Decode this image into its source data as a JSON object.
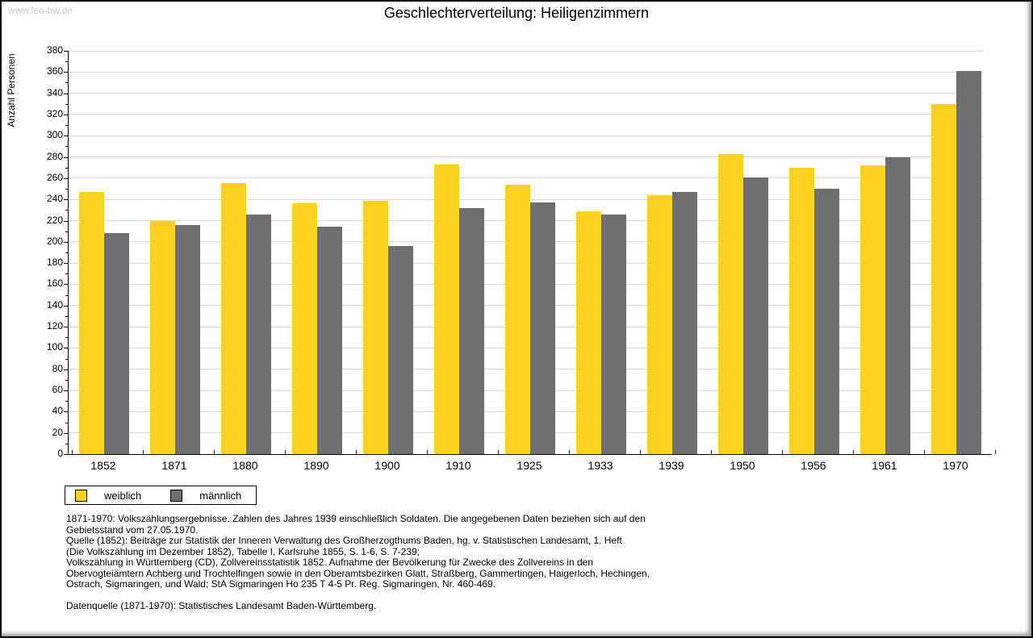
{
  "watermark": "www.leo-bw.de",
  "title": "Geschlechterverteilung: Heiligenzimmern",
  "chart_data": {
    "type": "bar",
    "title": "Geschlechterverteilung: Heiligenzimmern",
    "xlabel": "",
    "ylabel": "Anzahl Personen",
    "ylim": [
      0,
      380
    ],
    "ytick_step": 20,
    "ytick_minor_step": 10,
    "grid": true,
    "legend_position": "bottom-left",
    "categories": [
      "1852",
      "1871",
      "1880",
      "1890",
      "1900",
      "1910",
      "1925",
      "1933",
      "1939",
      "1950",
      "1956",
      "1961",
      "1970"
    ],
    "series": [
      {
        "name": "weiblich",
        "color": "#fcd122",
        "values": [
          247,
          220,
          255,
          236,
          239,
          273,
          254,
          229,
          244,
          283,
          270,
          272,
          330
        ]
      },
      {
        "name": "männlich",
        "color": "#6e6e6e",
        "values": [
          208,
          216,
          226,
          214,
          196,
          232,
          237,
          226,
          247,
          261,
          250,
          280,
          361
        ]
      }
    ]
  },
  "footer": {
    "notes": [
      "1871-1970: Volkszählungsergebnisse. Zahlen des Jahres 1939 einschließlich Soldaten. Die angegebenen Daten beziehen sich auf den",
      "Gebietsstand vom 27.05.1970.",
      "Quelle (1852): Beiträge zur Statistik der Inneren Verwaltung des Großherzogthums Baden, hg. v. Statistischen Landesamt, 1. Heft",
      "(Die Volkszählung im Dezember 1852), Tabelle I, Karlsruhe 1855, S. 1-6, S. 7-239;",
      "Volkszählung in Württemberg (CD), Zollvereinsstatistik 1852. Aufnahme der Bevölkerung für Zwecke des Zollvereins in den",
      "Obervogteiämtern Achberg und Trochtelfingen sowie in den Oberamtsbezirken Glatt, Straßberg, Gammertingen, Haigerloch, Hechingen,",
      "Ostrach, Sigmaringen, und Wald; StA Sigmaringen Ho 235 T 4-5 Pr. Reg. Sigmaringen, Nr. 460-469."
    ],
    "datasource": "Datenquelle (1871-1970): Statistisches Landesamt Baden-Württemberg."
  },
  "colors": {
    "weiblich": "#fcd122",
    "männlich": "#6e6e6e",
    "gridline": "#d9d9d9",
    "axis": "#000000",
    "watermark": "#c9c9c9",
    "background": "#ffffff"
  }
}
